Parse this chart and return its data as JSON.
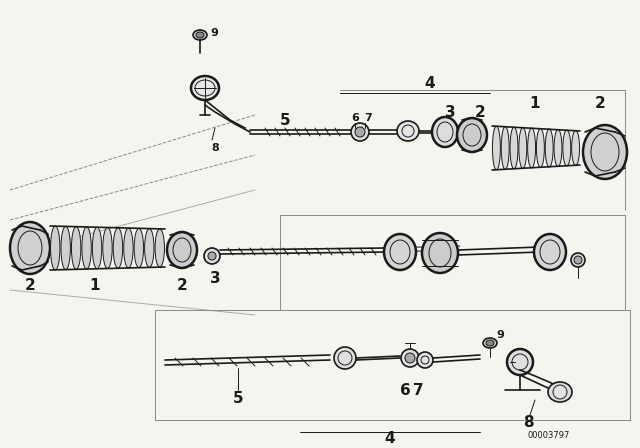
{
  "bg_color": "#f0f0f0",
  "line_color": "#1a1a1a",
  "fig_width": 6.4,
  "fig_height": 4.48,
  "dpi": 100,
  "watermark": "00003797",
  "lw_main": 1.2,
  "lw_thin": 0.7,
  "lw_thick": 1.8,
  "label_fs": 8,
  "label_bold_fs": 11
}
